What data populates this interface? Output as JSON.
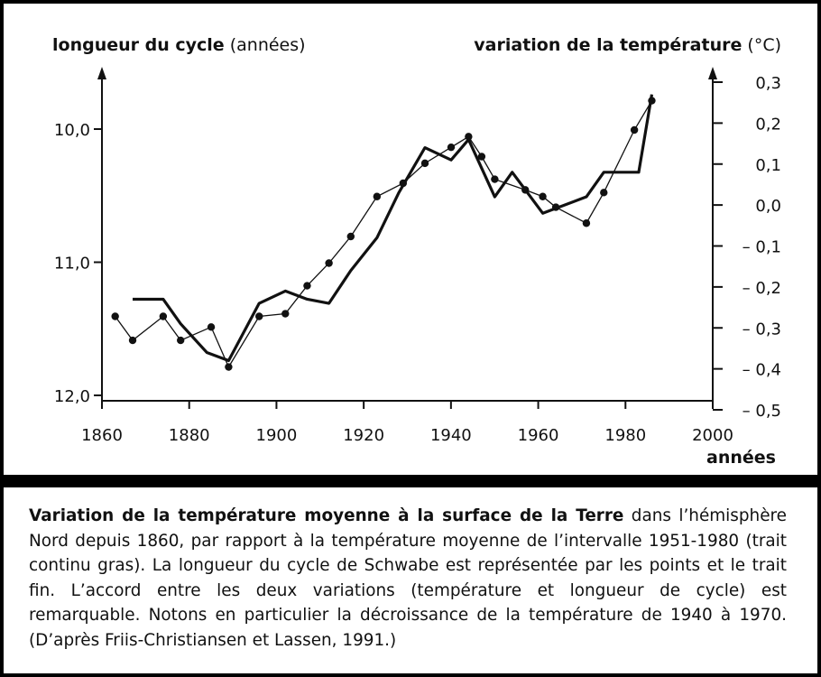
{
  "chart_data": {
    "type": "line",
    "left_axis": {
      "label_bold": "longueur du cycle",
      "label_unit": "(années)",
      "ticks": [
        "10,0",
        "11,0",
        "12,0"
      ],
      "tick_values": [
        10.0,
        11.0,
        12.0
      ],
      "ylim": [
        12.0,
        9.55
      ],
      "inverted": true
    },
    "right_axis": {
      "label_bold": "variation de la température",
      "label_unit": "(°C)",
      "ticks": [
        "0,3",
        "0,2",
        "0,1",
        "0,0",
        "– 0,1",
        "– 0,2",
        "– 0,3",
        "– 0,4",
        "– 0,5"
      ],
      "tick_values": [
        0.3,
        0.2,
        0.1,
        0.0,
        -0.1,
        -0.2,
        -0.3,
        -0.4,
        -0.5
      ],
      "ylim": [
        -0.5,
        0.3
      ]
    },
    "x_axis": {
      "label": "années",
      "ticks": [
        "1860",
        "1880",
        "1900",
        "1920",
        "1940",
        "1960",
        "1980",
        "2000"
      ],
      "tick_values": [
        1860,
        1880,
        1900,
        1920,
        1940,
        1960,
        1980,
        2000
      ],
      "xlim": [
        1860,
        2000
      ]
    },
    "series": [
      {
        "name": "Variation de la température (trait continu gras)",
        "axis": "right",
        "style": "thick-line",
        "x": [
          1866,
          1873,
          1877,
          1883,
          1888,
          1895,
          1901,
          1906,
          1911,
          1916,
          1922,
          1927,
          1933,
          1939,
          1943,
          1949,
          1953,
          1960,
          1970,
          1974,
          1982,
          1985
        ],
        "values": [
          -0.23,
          -0.23,
          -0.29,
          -0.36,
          -0.38,
          -0.24,
          -0.21,
          -0.23,
          -0.24,
          -0.16,
          -0.08,
          0.03,
          0.14,
          0.11,
          0.16,
          0.02,
          0.08,
          -0.02,
          0.02,
          0.08,
          0.08,
          0.27
        ]
      },
      {
        "name": "Longueur du cycle de Schwabe (points et trait fin)",
        "axis": "left",
        "style": "thin-line-with-dots",
        "x": [
          1862,
          1866,
          1873,
          1877,
          1884,
          1888,
          1895,
          1901,
          1906,
          1911,
          1916,
          1922,
          1928,
          1933,
          1939,
          1943,
          1946,
          1949,
          1956,
          1960,
          1963,
          1970,
          1974,
          1981,
          1985
        ],
        "values": [
          11.4,
          11.58,
          11.4,
          11.58,
          11.48,
          11.78,
          11.4,
          11.38,
          11.17,
          11.0,
          10.8,
          10.5,
          10.4,
          10.25,
          10.13,
          10.05,
          10.2,
          10.37,
          10.45,
          10.5,
          10.58,
          10.7,
          10.47,
          10.0,
          9.78
        ]
      }
    ]
  },
  "caption": {
    "title": "Variation de la température moyenne à la surface de la Terre",
    "text": " dans l’hé­misphère Nord depuis 1860, par rapport à la température moyenne de l’intervalle 1951-1980 (trait continu gras). La longueur du cycle de Schwabe est représentée par les points et le trait fin. L’accord entre les deux variations (température et lon­gueur de cycle) est remarquable. Notons en particulier la décroissance de la tem­pérature de 1940 à 1970. (D’après Friis-Christiansen et Lassen, 1991.)"
  }
}
